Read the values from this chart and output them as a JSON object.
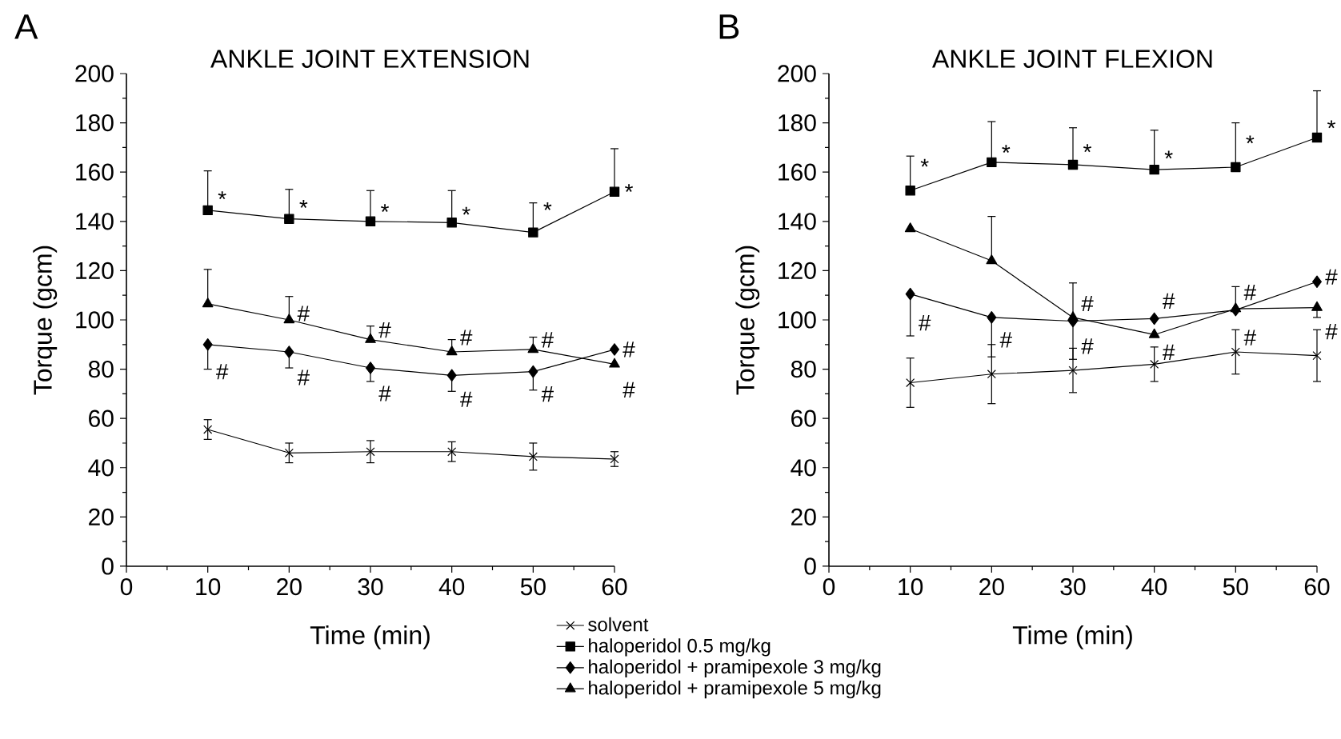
{
  "chart_data": [
    {
      "type": "line",
      "title": "ANKLE JOINT EXTENSION",
      "xlabel": "Time (min)",
      "ylabel": "Torque (gcm)",
      "x": [
        10,
        20,
        30,
        40,
        50,
        60
      ],
      "xlim": [
        0,
        60
      ],
      "ylim": [
        0,
        200
      ],
      "xticks": [
        0,
        10,
        20,
        30,
        40,
        50,
        60
      ],
      "yticks": [
        0,
        20,
        40,
        60,
        80,
        100,
        120,
        140,
        160,
        180,
        200
      ],
      "legend": "bottom",
      "series": [
        {
          "name": "solvent",
          "color": "#000000",
          "marker": "cross",
          "values": [
            55.5,
            46,
            46.5,
            46.5,
            44.5,
            43.5
          ],
          "errors": [
            4,
            4,
            4.5,
            4,
            5.5,
            3
          ]
        },
        {
          "name": "haloperidol 0.5 mg/kg",
          "color": "#000000",
          "marker": "square",
          "values": [
            144.5,
            141,
            140,
            139.5,
            135.5,
            152
          ],
          "errors": [
            [
              144.5,
              160.5
            ],
            [
              141,
              153
            ],
            [
              140,
              152.5
            ],
            [
              139.5,
              152.5
            ],
            [
              135.5,
              147.5
            ],
            [
              152,
              169.5
            ]
          ]
        },
        {
          "name": "haloperidol + pramipexole 3 mg/kg",
          "color": "#000000",
          "marker": "diamond",
          "values": [
            90,
            87,
            80.5,
            77.5,
            79,
            88
          ],
          "errors": [
            [
              80,
              90
            ],
            [
              80.5,
              87
            ],
            [
              75,
              80.5
            ],
            [
              71,
              77.5
            ],
            [
              71.5,
              79
            ],
            null
          ]
        },
        {
          "name": "haloperidol + pramipexole 5 mg/kg",
          "color": "#000000",
          "marker": "triangle",
          "values": [
            106.5,
            100,
            92,
            87,
            88,
            82
          ],
          "errors": [
            [
              106.5,
              120.5
            ],
            [
              100,
              109.5
            ],
            [
              92,
              97.5
            ],
            [
              87,
              92
            ],
            [
              88,
              93
            ],
            null
          ]
        }
      ],
      "annotations": [
        "A",
        {
          "text": "*",
          "x": 10,
          "y": 144.5
        },
        {
          "text": "*",
          "x": 20,
          "y": 141
        },
        {
          "text": "*",
          "x": 30,
          "y": 140
        },
        {
          "text": "*",
          "x": 40,
          "y": 139.5
        },
        {
          "text": "*",
          "x": 50,
          "y": 135.5
        },
        {
          "text": "*",
          "x": 60,
          "y": 152
        },
        {
          "text": "#",
          "x": 20,
          "y": 100
        },
        {
          "text": "#",
          "x": 30,
          "y": 92
        },
        {
          "text": "#",
          "x": 40,
          "y": 87
        },
        {
          "text": "#",
          "x": 50,
          "y": 88
        },
        {
          "text": "#",
          "x": 60,
          "y": 88
        },
        {
          "text": "#",
          "x": 60,
          "y": 82
        },
        {
          "text": "#",
          "x": 10,
          "y": 90
        },
        {
          "text": "#",
          "x": 20,
          "y": 87
        },
        {
          "text": "#",
          "x": 30,
          "y": 80.5
        },
        {
          "text": "#",
          "x": 40,
          "y": 77.5
        },
        {
          "text": "#",
          "x": 50,
          "y": 79
        }
      ]
    },
    {
      "type": "line",
      "title": "ANKLE JOINT FLEXION",
      "xlabel": "Time (min)",
      "ylabel": "Torque (gcm)",
      "x": [
        10,
        20,
        30,
        40,
        50,
        60
      ],
      "xlim": [
        0,
        60
      ],
      "ylim": [
        0,
        200
      ],
      "xticks": [
        0,
        10,
        20,
        30,
        40,
        50,
        60
      ],
      "yticks": [
        0,
        20,
        40,
        60,
        80,
        100,
        120,
        140,
        160,
        180,
        200
      ],
      "series": [
        {
          "color": "#000000",
          "marker": "cross",
          "values": [
            74.5,
            78,
            79.5,
            82,
            87,
            85.5
          ],
          "errors": [
            10,
            12,
            9,
            7,
            9,
            10.5
          ]
        },
        {
          "color": "#000000",
          "marker": "square",
          "values": [
            152.5,
            164,
            163,
            161,
            162,
            174
          ],
          "errors": [
            [
              152.5,
              166.5
            ],
            [
              164,
              180.5
            ],
            [
              163,
              178
            ],
            [
              161,
              177
            ],
            [
              162,
              180
            ],
            [
              174,
              193
            ]
          ]
        },
        {
          "color": "#000000",
          "marker": "diamond",
          "values": [
            110.5,
            101,
            99.5,
            100.5,
            104,
            115.5
          ],
          "errors": [
            [
              93.5,
              110.5
            ],
            [
              85,
              101
            ],
            [
              84,
              99.5
            ],
            null,
            [
              104,
              113.5
            ],
            null
          ]
        },
        {
          "color": "#000000",
          "marker": "triangle",
          "values": [
            137,
            124,
            101,
            94,
            104.5,
            105
          ],
          "errors": [
            null,
            [
              124,
              142
            ],
            [
              101,
              115
            ],
            null,
            null,
            [
              101,
              105
            ]
          ]
        }
      ],
      "annotations": [
        "B",
        {
          "text": "*",
          "x": 10,
          "y": 152.5
        },
        {
          "text": "*",
          "x": 20,
          "y": 164
        },
        {
          "text": "*",
          "x": 30,
          "y": 163
        },
        {
          "text": "*",
          "x": 40,
          "y": 161
        },
        {
          "text": "*",
          "x": 50,
          "y": 162
        },
        {
          "text": "*",
          "x": 60,
          "y": 174
        },
        {
          "text": "#",
          "x": 10,
          "y": 110.5
        },
        {
          "text": "#",
          "x": 20,
          "y": 101
        },
        {
          "text": "#",
          "x": 30,
          "y": 99.5
        },
        {
          "text": "#",
          "x": 30,
          "y": 101
        },
        {
          "text": "#",
          "x": 40,
          "y": 100.5
        },
        {
          "text": "#",
          "x": 40,
          "y": 94
        },
        {
          "text": "#",
          "x": 50,
          "y": 104
        },
        {
          "text": "#",
          "x": 50,
          "y": 104.5
        },
        {
          "text": "#",
          "x": 60,
          "y": 115.5
        },
        {
          "text": "#",
          "x": 60,
          "y": 105
        }
      ]
    }
  ]
}
